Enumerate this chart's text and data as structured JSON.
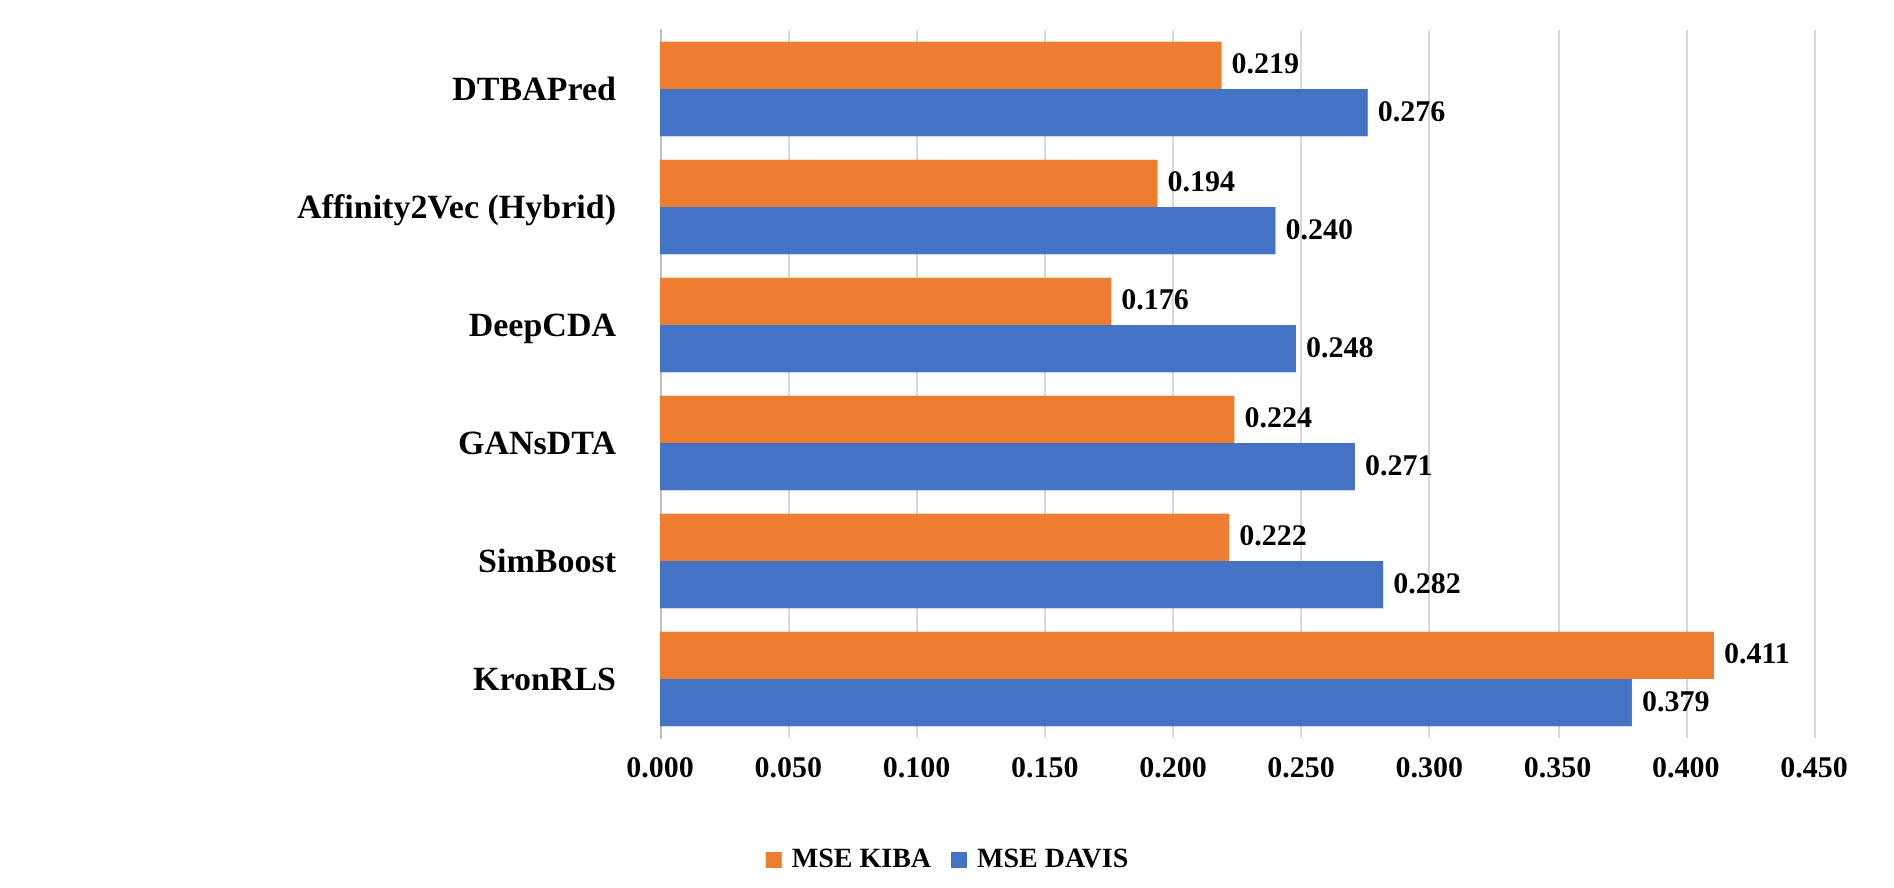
{
  "chart_data": {
    "type": "bar",
    "orientation": "horizontal",
    "categories": [
      "DTBAPred",
      "Affinity2Vec (Hybrid)",
      "DeepCDA",
      "GANsDTA",
      "SimBoost",
      "KronRLS"
    ],
    "series": [
      {
        "name": "MSE KIBA",
        "color": "#ed7d31",
        "values": [
          0.219,
          0.194,
          0.176,
          0.224,
          0.222,
          0.411
        ],
        "value_labels": [
          "0.219",
          "0.194",
          "0.176",
          "0.224",
          "0.222",
          "0.411"
        ]
      },
      {
        "name": "MSE DAVIS",
        "color": "#4472c4",
        "values": [
          0.276,
          0.24,
          0.248,
          0.271,
          0.282,
          0.379
        ],
        "value_labels": [
          "0.276",
          "0.240",
          "0.248",
          "0.271",
          "0.282",
          "0.379"
        ]
      }
    ],
    "xlim": [
      0,
      0.45
    ],
    "xticks": [
      {
        "value": 0,
        "label": "0.000"
      },
      {
        "value": 0.05,
        "label": "0.050"
      },
      {
        "value": 0.1,
        "label": "0.100"
      },
      {
        "value": 0.15,
        "label": "0.150"
      },
      {
        "value": 0.2,
        "label": "0.200"
      },
      {
        "value": 0.25,
        "label": "0.250"
      },
      {
        "value": 0.3,
        "label": "0.300"
      },
      {
        "value": 0.35,
        "label": "0.350"
      },
      {
        "value": 0.4,
        "label": "0.400"
      },
      {
        "value": 0.45,
        "label": "0.450"
      }
    ],
    "grid": "x",
    "legend": "bottom"
  }
}
